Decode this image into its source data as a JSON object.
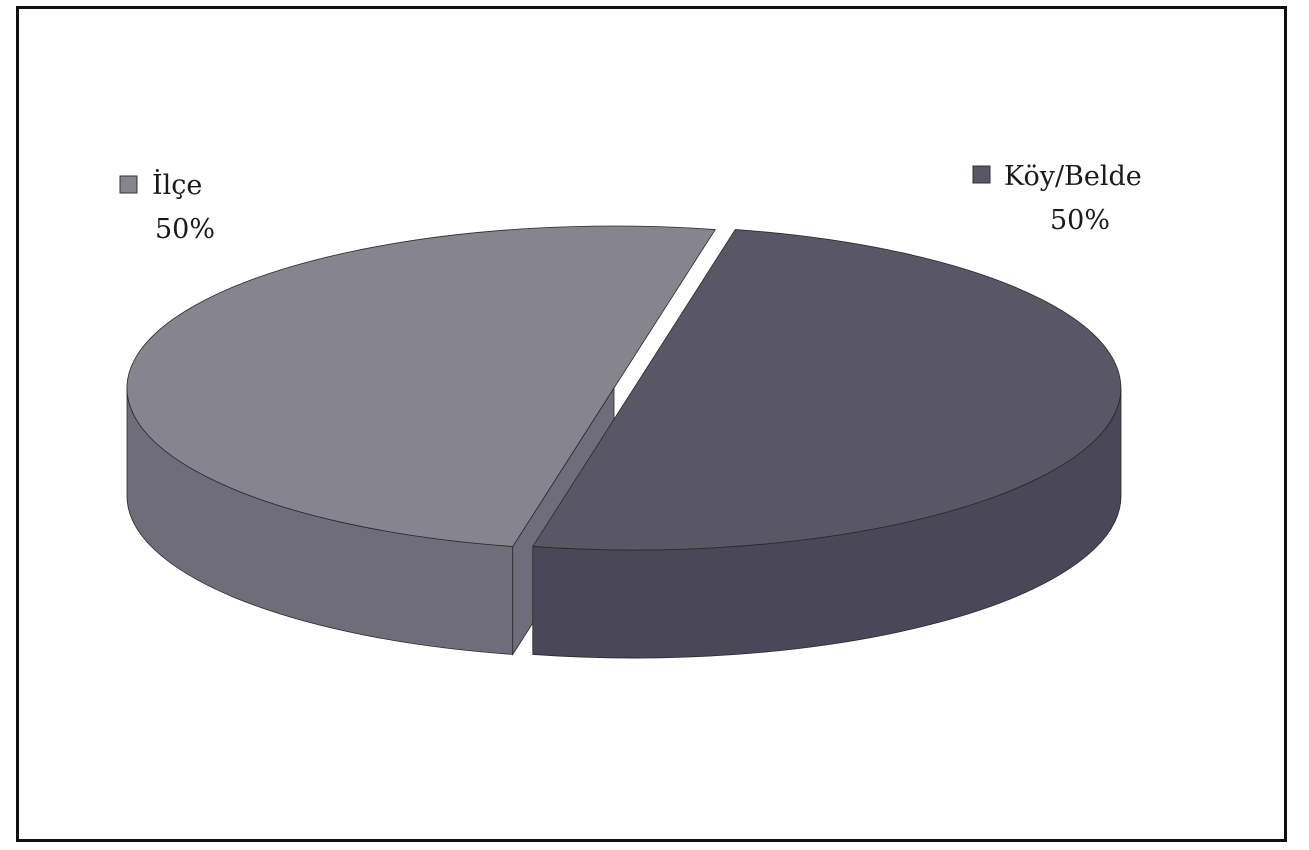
{
  "chart_data": {
    "type": "pie",
    "style": "3d",
    "slices": [
      {
        "label": "İlçe",
        "value": 50,
        "value_label": "50%",
        "color": "#86848f",
        "side_color": "#6f6d7a"
      },
      {
        "label": "Köy/Belde",
        "value": 50,
        "value_label": "50%",
        "color": "#595766",
        "side_color": "#4a4858"
      }
    ],
    "legend_placement": "top-left and top-right labels"
  }
}
